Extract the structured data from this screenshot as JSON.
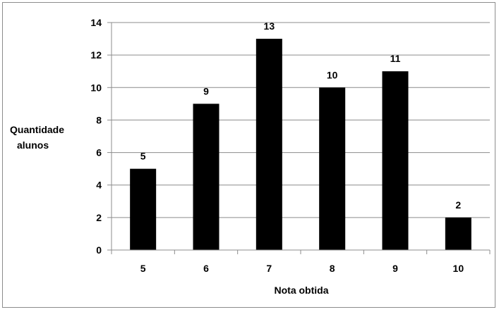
{
  "chart_data": {
    "type": "bar",
    "categories": [
      "5",
      "6",
      "7",
      "8",
      "9",
      "10"
    ],
    "values": [
      5,
      9,
      13,
      10,
      11,
      2
    ],
    "data_labels": [
      "5",
      "9",
      "13",
      "10",
      "11",
      "2"
    ],
    "xlabel": "Nota obtida",
    "ylabel_lines": [
      "Quantidade",
      "alunos"
    ],
    "ylim": [
      0,
      14
    ],
    "yticks": [
      0,
      2,
      4,
      6,
      8,
      10,
      12,
      14
    ],
    "ytick_labels": [
      "0",
      "2",
      "4",
      "6",
      "8",
      "10",
      "12",
      "14"
    ],
    "grid": true,
    "legend": "none",
    "bar_color": "#000000",
    "grid_color": "#8c8c8c"
  }
}
